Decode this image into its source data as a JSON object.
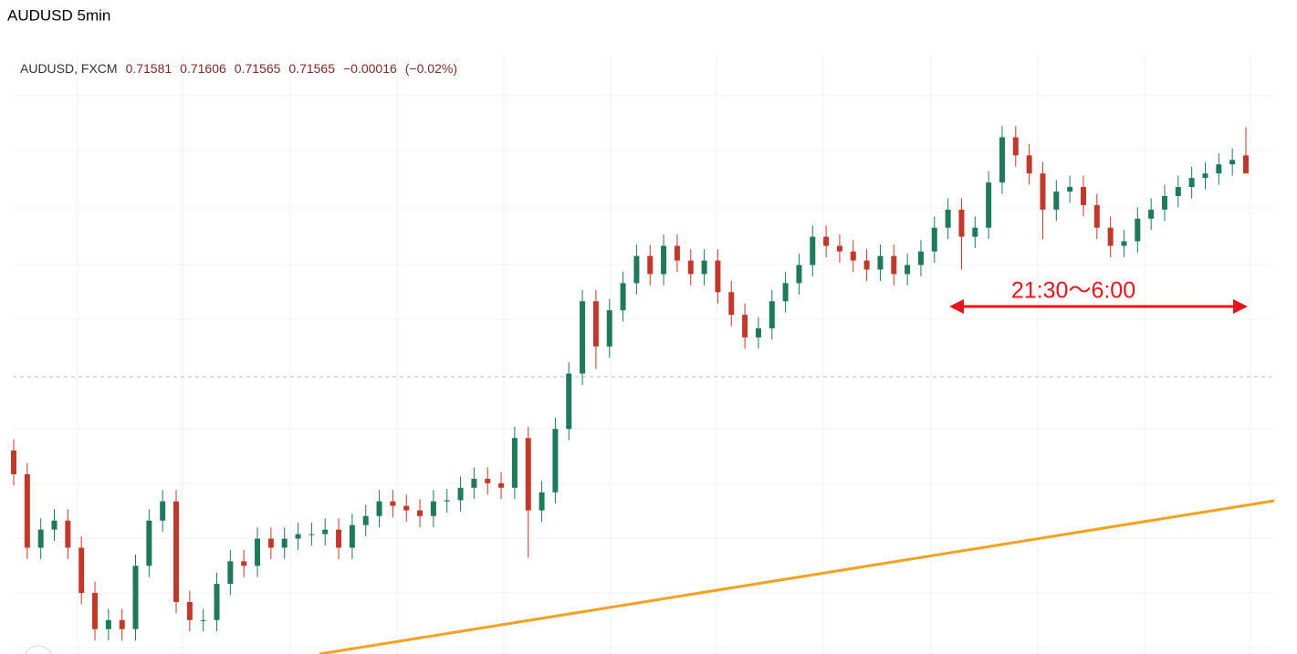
{
  "chart_data": {
    "type": "candlestick",
    "title": "AUDUSD 5min",
    "header": {
      "symbol": "AUDUSD, FXCM",
      "values": [
        "0.71581",
        "0.71606",
        "0.71565",
        "0.71565",
        "−0.00016",
        "(−0.02%)"
      ]
    },
    "annotation": "21:30〜6:00",
    "up_color": "#1f7a5a",
    "down_color": "#c0392b",
    "ylim": [
      0.7114,
      0.7167
    ],
    "open": [
      0.7132,
      0.71299,
      0.71234,
      0.7125,
      0.71258,
      0.71234,
      0.71194,
      0.71162,
      0.7117,
      0.71162,
      0.71218,
      0.71258,
      0.71275,
      0.71186,
      0.7117,
      0.7117,
      0.71202,
      0.71222,
      0.71218,
      0.71242,
      0.71234,
      0.71242,
      0.71246,
      0.71246,
      0.7125,
      0.71234,
      0.71254,
      0.71262,
      0.71275,
      0.71271,
      0.71267,
      0.71262,
      0.71275,
      0.71276,
      0.71287,
      0.71295,
      0.71291,
      0.71287,
      0.71331,
      0.71267,
      0.71283,
      0.71339,
      0.71388,
      0.71452,
      0.71412,
      0.71444,
      0.71468,
      0.71492,
      0.71476,
      0.71501,
      0.71488,
      0.71476,
      0.71488,
      0.7146,
      0.7144,
      0.7142,
      0.71428,
      0.71452,
      0.71468,
      0.71484,
      0.71509,
      0.71501,
      0.71496,
      0.71488,
      0.7148,
      0.71492,
      0.71476,
      0.71484,
      0.71496,
      0.71517,
      0.71533,
      0.71509,
      0.71517,
      0.71557,
      0.71597,
      0.71581,
      0.71565,
      0.71533,
      0.71549,
      0.71553,
      0.71537,
      0.71517,
      0.71501,
      0.71505,
      0.71525,
      0.71533,
      0.71545,
      0.71553,
      0.71561,
      0.71565,
      0.71573,
      0.71581
    ],
    "high": [
      0.7133,
      0.71309,
      0.7126,
      0.71268,
      0.71268,
      0.71244,
      0.71204,
      0.7118,
      0.7118,
      0.71228,
      0.71268,
      0.71285,
      0.71285,
      0.71196,
      0.7118,
      0.71212,
      0.71232,
      0.71232,
      0.71252,
      0.71252,
      0.71252,
      0.71256,
      0.71256,
      0.7126,
      0.7126,
      0.71264,
      0.71272,
      0.71285,
      0.71285,
      0.71281,
      0.71277,
      0.71285,
      0.71286,
      0.71297,
      0.71305,
      0.71305,
      0.71301,
      0.71341,
      0.71341,
      0.71293,
      0.71349,
      0.71398,
      0.71462,
      0.71462,
      0.71454,
      0.71478,
      0.71502,
      0.71502,
      0.71511,
      0.71511,
      0.71498,
      0.71498,
      0.71498,
      0.7147,
      0.7145,
      0.71438,
      0.71462,
      0.71478,
      0.71494,
      0.71519,
      0.71519,
      0.71511,
      0.71506,
      0.71498,
      0.71502,
      0.71502,
      0.71494,
      0.71506,
      0.71527,
      0.71543,
      0.71543,
      0.71527,
      0.71567,
      0.71607,
      0.71607,
      0.71591,
      0.71575,
      0.71559,
      0.71563,
      0.71563,
      0.71547,
      0.71527,
      0.71515,
      0.71535,
      0.71543,
      0.71555,
      0.71563,
      0.71571,
      0.71575,
      0.71583,
      0.71587,
      0.71606
    ],
    "low": [
      0.71289,
      0.71224,
      0.71224,
      0.7124,
      0.71224,
      0.71184,
      0.71152,
      0.71152,
      0.71152,
      0.71152,
      0.71208,
      0.71248,
      0.71176,
      0.7116,
      0.7116,
      0.7116,
      0.71192,
      0.71208,
      0.71208,
      0.71224,
      0.71224,
      0.71232,
      0.71236,
      0.71236,
      0.71224,
      0.71224,
      0.71244,
      0.71252,
      0.71261,
      0.71257,
      0.71252,
      0.71252,
      0.71265,
      0.71266,
      0.71277,
      0.71281,
      0.71277,
      0.71277,
      0.71225,
      0.71257,
      0.71273,
      0.71329,
      0.71378,
      0.71392,
      0.71402,
      0.71434,
      0.71458,
      0.71466,
      0.71466,
      0.71478,
      0.71466,
      0.71466,
      0.7145,
      0.7143,
      0.7141,
      0.7141,
      0.71418,
      0.71442,
      0.71458,
      0.71474,
      0.71491,
      0.71486,
      0.71478,
      0.7147,
      0.7147,
      0.71466,
      0.71466,
      0.71474,
      0.71486,
      0.71507,
      0.7148,
      0.71499,
      0.71507,
      0.71547,
      0.71571,
      0.71555,
      0.71507,
      0.71523,
      0.71539,
      0.71527,
      0.71507,
      0.71491,
      0.71491,
      0.71495,
      0.71515,
      0.71523,
      0.71535,
      0.71543,
      0.71551,
      0.71555,
      0.71563,
      0.71565
    ],
    "close": [
      0.71299,
      0.71234,
      0.7125,
      0.71258,
      0.71234,
      0.71194,
      0.71162,
      0.7117,
      0.71162,
      0.71218,
      0.71258,
      0.71275,
      0.71186,
      0.7117,
      0.7117,
      0.71202,
      0.71222,
      0.71218,
      0.71242,
      0.71234,
      0.71242,
      0.71246,
      0.71246,
      0.7125,
      0.71234,
      0.71254,
      0.71262,
      0.71275,
      0.71271,
      0.71267,
      0.71262,
      0.71275,
      0.71276,
      0.71287,
      0.71295,
      0.71291,
      0.71287,
      0.71331,
      0.71267,
      0.71283,
      0.71339,
      0.71388,
      0.71452,
      0.71412,
      0.71444,
      0.71468,
      0.71492,
      0.71476,
      0.71501,
      0.71488,
      0.71476,
      0.71488,
      0.7146,
      0.7144,
      0.7142,
      0.71428,
      0.71452,
      0.71468,
      0.71484,
      0.71509,
      0.71501,
      0.71496,
      0.71488,
      0.7148,
      0.71492,
      0.71476,
      0.71484,
      0.71496,
      0.71517,
      0.71533,
      0.71509,
      0.71517,
      0.71557,
      0.71597,
      0.71581,
      0.71565,
      0.71533,
      0.71549,
      0.71553,
      0.71537,
      0.71517,
      0.71501,
      0.71505,
      0.71525,
      0.71533,
      0.71545,
      0.71553,
      0.71561,
      0.71565,
      0.71573,
      0.71577,
      0.71565
    ]
  }
}
